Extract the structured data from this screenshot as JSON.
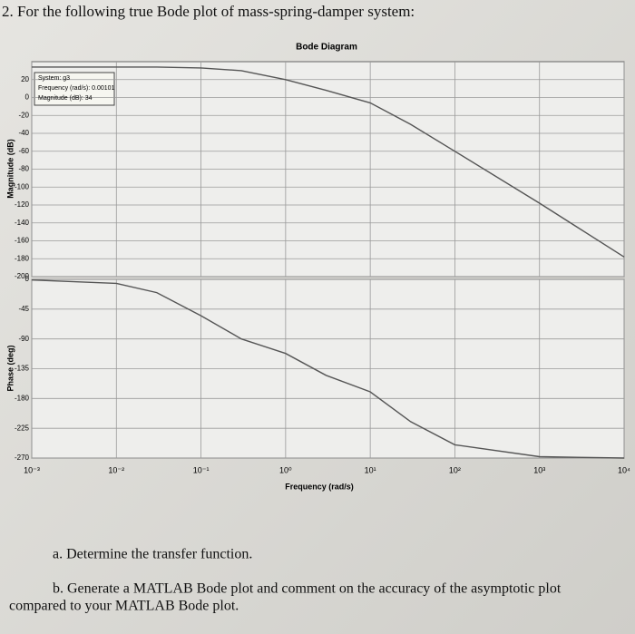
{
  "question": "2. For the following true Bode plot of mass-spring-damper system:",
  "chart_data": [
    {
      "type": "line",
      "title": "Bode Diagram",
      "ylabel": "Magnitude (dB)",
      "x": [
        0.001,
        0.01,
        0.03,
        0.1,
        0.3,
        1,
        3,
        10,
        30,
        100,
        1000,
        10000
      ],
      "values": [
        34,
        34,
        34,
        33,
        30,
        20,
        8,
        -6,
        -30,
        -60,
        -118,
        -178
      ],
      "color": "#555555",
      "log_x": true,
      "grid": true,
      "xlim": [
        0.001,
        10000
      ],
      "xticks": [
        0.001,
        0.01,
        0.1,
        1,
        10,
        100,
        1000,
        10000
      ],
      "ylim": [
        -200,
        40
      ],
      "yticks": [
        20,
        0,
        -20,
        -40,
        -60,
        -80,
        -100,
        -120,
        -140,
        -160,
        -180,
        -200
      ],
      "datatip": [
        "System: g3",
        "Frequency (rad/s): 0.00101",
        "Magnitude (dB): 34"
      ]
    },
    {
      "type": "line",
      "ylabel": "Phase (deg)",
      "xlabel": "Frequency (rad/s)",
      "x": [
        0.001,
        0.01,
        0.03,
        0.1,
        0.3,
        1,
        3,
        10,
        30,
        100,
        1000,
        10000
      ],
      "values": [
        -1,
        -6,
        -20,
        -55,
        -90,
        -112,
        -145,
        -170,
        -215,
        -250,
        -268,
        -270
      ],
      "color": "#555555",
      "log_x": true,
      "grid": true,
      "xlim": [
        0.001,
        10000
      ],
      "xticks": [
        {
          "value": 0.001,
          "label": "10⁻³"
        },
        {
          "value": 0.01,
          "label": "10⁻²"
        },
        {
          "value": 0.1,
          "label": "10⁻¹"
        },
        {
          "value": 1,
          "label": "10⁰"
        },
        {
          "value": 10,
          "label": "10¹"
        },
        {
          "value": 100,
          "label": "10²"
        },
        {
          "value": 1000,
          "label": "10³"
        },
        {
          "value": 10000,
          "label": "10⁴"
        }
      ],
      "ylim": [
        -270,
        0
      ],
      "yticks": [
        0,
        -45,
        -90,
        -135,
        -180,
        -225,
        -270
      ]
    }
  ],
  "parts": [
    "a. Determine the transfer function.",
    "b. Generate a MATLAB Bode plot and comment on the accuracy of the asymptotic plot",
    "compared to your MATLAB Bode plot."
  ]
}
